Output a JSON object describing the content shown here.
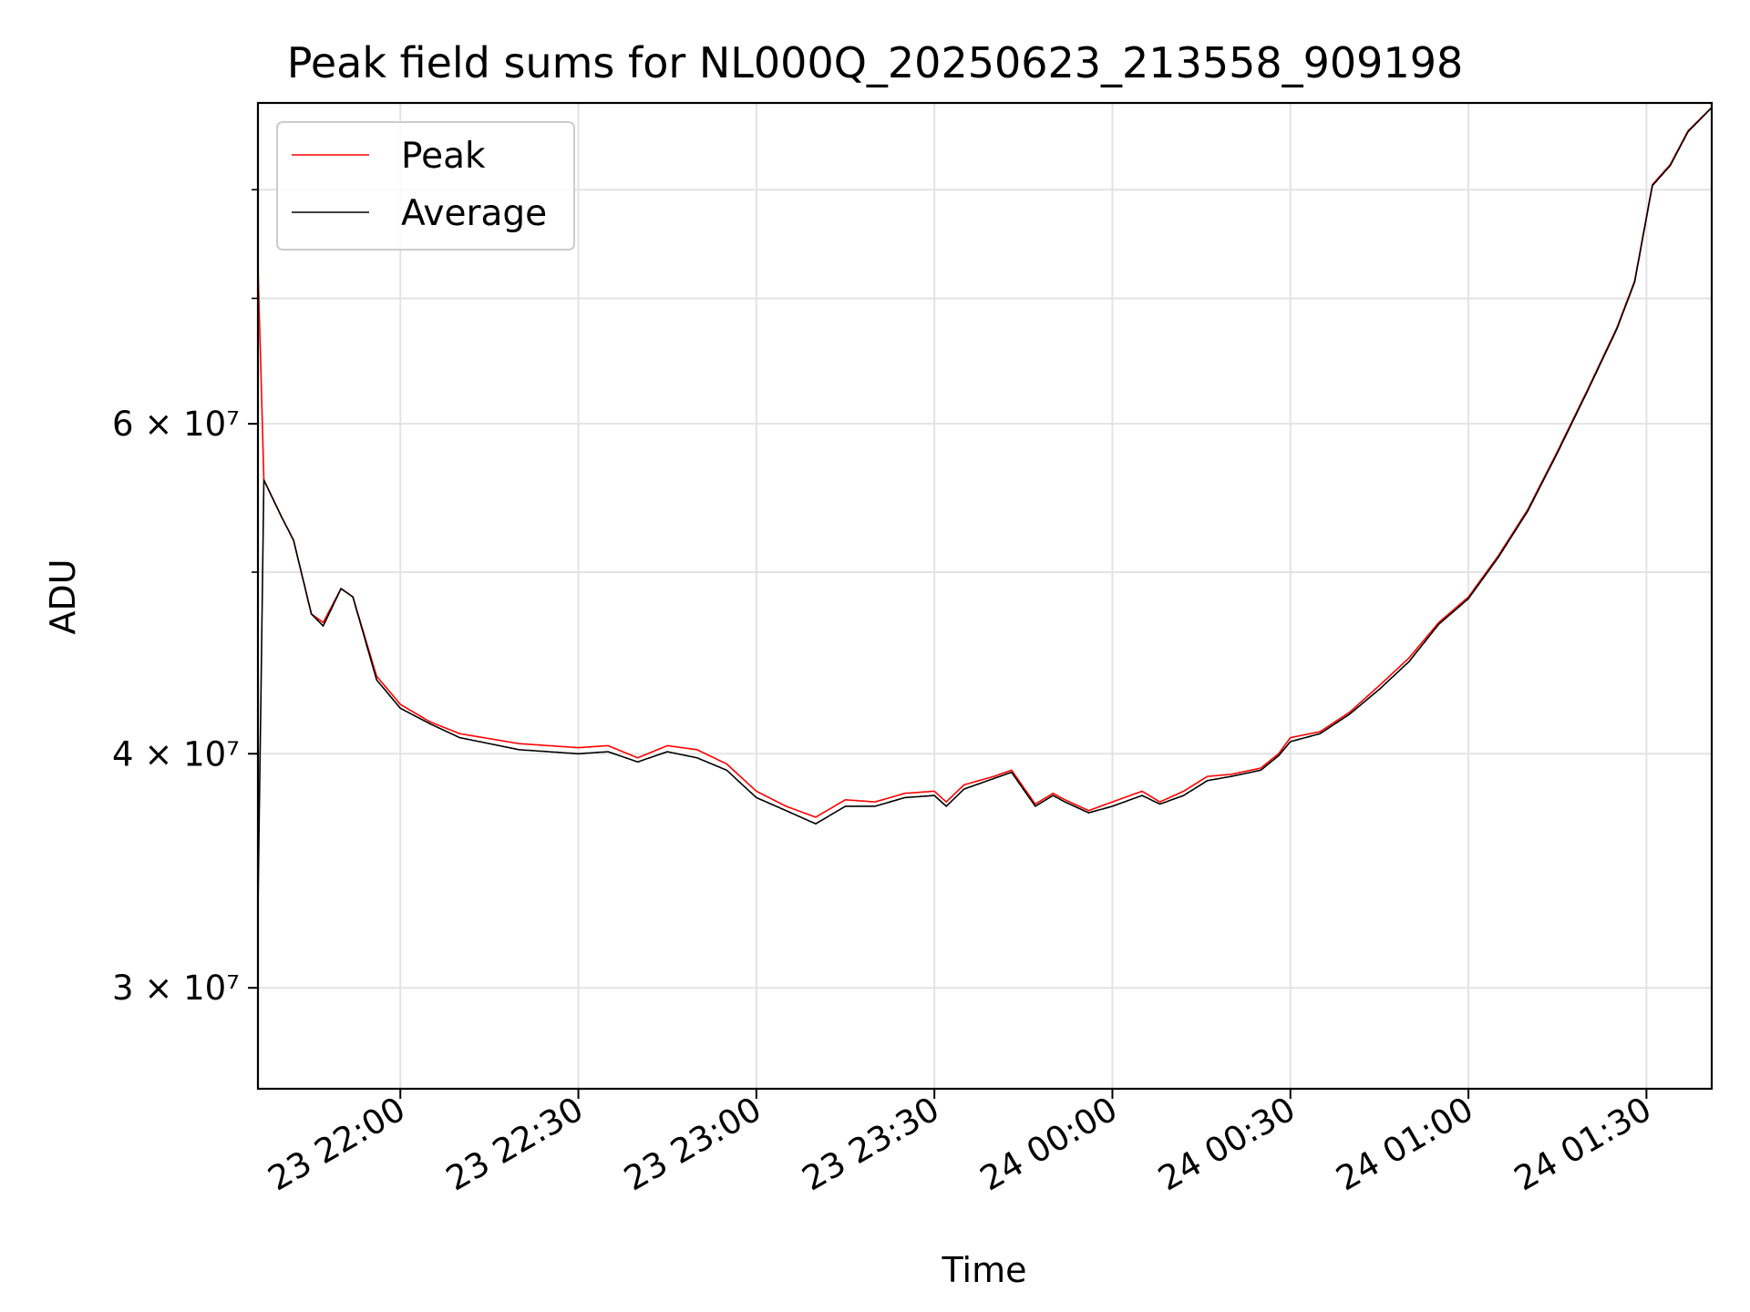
{
  "chart_data": {
    "type": "line",
    "title": "Peak field sums for NL000Q_20250623_213558_909198",
    "xlabel": "Time",
    "ylabel": "ADU",
    "yscale": "log",
    "xlim": [
      "23 21:36",
      "24 01:41"
    ],
    "ylim": [
      26500000,
      89000000
    ],
    "grid": true,
    "legend_position": "top-left",
    "x_ticks": [
      "23 22:00",
      "23 22:30",
      "23 23:00",
      "23 23:30",
      "24 00:00",
      "24 00:30",
      "24 01:00",
      "24 01:30"
    ],
    "y_ticks": [
      {
        "value": 30000000,
        "label": "3 × 10⁷"
      },
      {
        "value": 40000000,
        "label": "4 × 10⁷"
      },
      {
        "value": 60000000,
        "label": "6 × 10⁷"
      }
    ],
    "series": [
      {
        "name": "Peak",
        "color": "#ff0000",
        "points": [
          [
            "23 21:36",
            73000000
          ],
          [
            "23 21:37",
            56000000
          ],
          [
            "23 21:40",
            53500000
          ],
          [
            "23 21:42",
            52000000
          ],
          [
            "23 21:45",
            47500000
          ],
          [
            "23 21:47",
            47000000
          ],
          [
            "23 21:50",
            49000000
          ],
          [
            "23 21:52",
            48500000
          ],
          [
            "23 21:56",
            44000000
          ],
          [
            "23 22:00",
            42500000
          ],
          [
            "23 22:05",
            41600000
          ],
          [
            "23 22:10",
            41000000
          ],
          [
            "23 22:20",
            40500000
          ],
          [
            "23 22:30",
            40300000
          ],
          [
            "23 22:35",
            40400000
          ],
          [
            "23 22:40",
            39800000
          ],
          [
            "23 22:45",
            40400000
          ],
          [
            "23 22:50",
            40200000
          ],
          [
            "23 22:55",
            39500000
          ],
          [
            "23 23:00",
            38200000
          ],
          [
            "23 23:05",
            37500000
          ],
          [
            "23 23:10",
            37000000
          ],
          [
            "23 23:15",
            37800000
          ],
          [
            "23 23:20",
            37700000
          ],
          [
            "23 23:25",
            38100000
          ],
          [
            "23 23:30",
            38200000
          ],
          [
            "23 23:32",
            37700000
          ],
          [
            "23 23:35",
            38500000
          ],
          [
            "23 23:40",
            38900000
          ],
          [
            "23 23:43",
            39200000
          ],
          [
            "23 23:47",
            37600000
          ],
          [
            "23 23:50",
            38100000
          ],
          [
            "23 23:52",
            37800000
          ],
          [
            "23 23:56",
            37300000
          ],
          [
            "24 00:00",
            37700000
          ],
          [
            "24 00:05",
            38200000
          ],
          [
            "24 00:08",
            37700000
          ],
          [
            "24 00:12",
            38200000
          ],
          [
            "24 00:16",
            38900000
          ],
          [
            "24 00:20",
            39000000
          ],
          [
            "24 00:25",
            39300000
          ],
          [
            "24 00:28",
            40000000
          ],
          [
            "24 00:30",
            40800000
          ],
          [
            "24 00:35",
            41100000
          ],
          [
            "24 00:40",
            42100000
          ],
          [
            "24 00:45",
            43500000
          ],
          [
            "24 00:50",
            45000000
          ],
          [
            "24 00:55",
            47000000
          ],
          [
            "24 01:00",
            48500000
          ],
          [
            "24 01:05",
            51000000
          ],
          [
            "24 01:10",
            54000000
          ],
          [
            "24 01:15",
            58000000
          ],
          [
            "24 01:20",
            62500000
          ],
          [
            "24 01:25",
            67500000
          ],
          [
            "24 01:28",
            71500000
          ],
          [
            "24 01:31",
            80500000
          ],
          [
            "24 01:34",
            82500000
          ],
          [
            "24 01:37",
            86000000
          ],
          [
            "24 01:41",
            88500000
          ]
        ]
      },
      {
        "name": "Average",
        "color": "#000000",
        "points": [
          [
            "23 21:36",
            26800000
          ],
          [
            "23 21:36",
            33000000
          ],
          [
            "23 21:37",
            56000000
          ],
          [
            "23 21:40",
            53500000
          ],
          [
            "23 21:42",
            52000000
          ],
          [
            "23 21:45",
            47500000
          ],
          [
            "23 21:47",
            46800000
          ],
          [
            "23 21:50",
            49000000
          ],
          [
            "23 21:52",
            48500000
          ],
          [
            "23 21:56",
            43800000
          ],
          [
            "23 22:00",
            42300000
          ],
          [
            "23 22:05",
            41500000
          ],
          [
            "23 22:10",
            40800000
          ],
          [
            "23 22:20",
            40200000
          ],
          [
            "23 22:30",
            40000000
          ],
          [
            "23 22:35",
            40100000
          ],
          [
            "23 22:40",
            39600000
          ],
          [
            "23 22:45",
            40100000
          ],
          [
            "23 22:50",
            39800000
          ],
          [
            "23 22:55",
            39200000
          ],
          [
            "23 23:00",
            37900000
          ],
          [
            "23 23:05",
            37300000
          ],
          [
            "23 23:10",
            36700000
          ],
          [
            "23 23:15",
            37500000
          ],
          [
            "23 23:20",
            37500000
          ],
          [
            "23 23:25",
            37900000
          ],
          [
            "23 23:30",
            38000000
          ],
          [
            "23 23:32",
            37500000
          ],
          [
            "23 23:35",
            38300000
          ],
          [
            "23 23:40",
            38800000
          ],
          [
            "23 23:43",
            39100000
          ],
          [
            "23 23:47",
            37500000
          ],
          [
            "23 23:50",
            38000000
          ],
          [
            "23 23:52",
            37700000
          ],
          [
            "23 23:56",
            37200000
          ],
          [
            "24 00:00",
            37500000
          ],
          [
            "24 00:05",
            38000000
          ],
          [
            "24 00:08",
            37600000
          ],
          [
            "24 00:12",
            38000000
          ],
          [
            "24 00:16",
            38700000
          ],
          [
            "24 00:20",
            38900000
          ],
          [
            "24 00:25",
            39200000
          ],
          [
            "24 00:28",
            39900000
          ],
          [
            "24 00:30",
            40600000
          ],
          [
            "24 00:35",
            41000000
          ],
          [
            "24 00:40",
            42000000
          ],
          [
            "24 00:45",
            43300000
          ],
          [
            "24 00:50",
            44800000
          ],
          [
            "24 00:55",
            46900000
          ],
          [
            "24 01:00",
            48400000
          ],
          [
            "24 01:05",
            50900000
          ],
          [
            "24 01:10",
            53900000
          ],
          [
            "24 01:15",
            57900000
          ],
          [
            "24 01:20",
            62400000
          ],
          [
            "24 01:25",
            67400000
          ],
          [
            "24 01:28",
            71400000
          ],
          [
            "24 01:31",
            80400000
          ],
          [
            "24 01:34",
            82400000
          ],
          [
            "24 01:37",
            85900000
          ],
          [
            "24 01:41",
            88500000
          ]
        ]
      }
    ]
  }
}
